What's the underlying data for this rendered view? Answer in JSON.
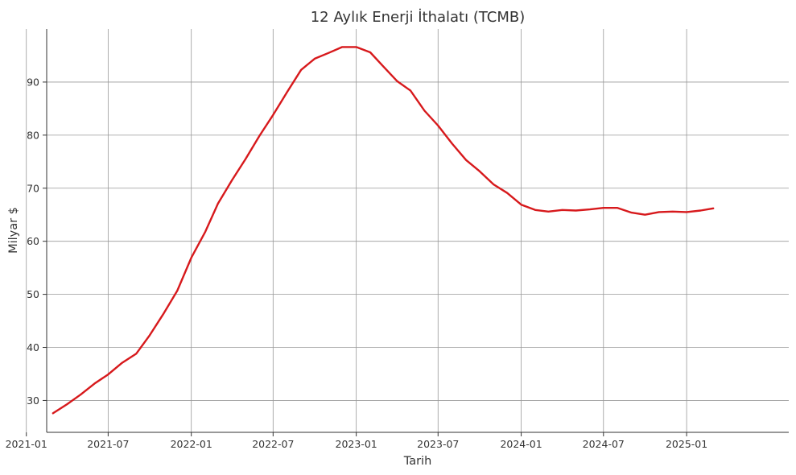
{
  "chart_data": {
    "type": "line",
    "title": "12 Aylık Enerji İthalatı (TCMB)",
    "xlabel": "Tarih",
    "ylabel": "Milyar $",
    "x_axis_type": "date",
    "xlim": [
      "2021-02-15",
      "2025-08-15"
    ],
    "ylim": [
      24,
      100
    ],
    "x_ticks": [
      "2021-01",
      "2021-07",
      "2022-01",
      "2022-07",
      "2023-01",
      "2023-07",
      "2024-01",
      "2024-07",
      "2025-01"
    ],
    "y_ticks": [
      30,
      40,
      50,
      60,
      70,
      80,
      90
    ],
    "grid": true,
    "legend": "none",
    "series": [
      {
        "color": "#d7191c",
        "x": [
          "2021-03",
          "2021-04",
          "2021-05",
          "2021-06",
          "2021-07",
          "2021-08",
          "2021-09",
          "2021-10",
          "2021-11",
          "2021-12",
          "2022-01",
          "2022-02",
          "2022-03",
          "2022-04",
          "2022-05",
          "2022-06",
          "2022-07",
          "2022-08",
          "2022-09",
          "2022-10",
          "2022-11",
          "2022-12",
          "2023-01",
          "2023-02",
          "2023-03",
          "2023-04",
          "2023-05",
          "2023-06",
          "2023-07",
          "2023-08",
          "2023-09",
          "2023-10",
          "2023-11",
          "2023-12",
          "2024-01",
          "2024-02",
          "2024-03",
          "2024-04",
          "2024-05",
          "2024-06",
          "2024-07",
          "2024-08",
          "2024-09",
          "2024-10",
          "2024-11",
          "2024-12",
          "2025-01",
          "2025-02",
          "2025-03"
        ],
        "values": [
          27.6,
          29.3,
          31.1,
          33.2,
          34.9,
          37.1,
          38.8,
          42.3,
          46.4,
          50.7,
          56.9,
          61.8,
          67.1,
          71.5,
          75.5,
          79.9,
          83.8,
          88.1,
          92.3,
          94.4,
          95.5,
          96.6,
          96.6,
          95.6,
          93.0,
          90.2,
          88.4,
          84.6,
          81.8,
          78.4,
          75.3,
          73.2,
          70.7,
          69.1,
          66.9,
          65.9,
          65.6,
          65.9,
          65.8,
          66.0,
          66.3,
          66.3,
          65.4,
          65.0,
          65.5,
          65.6,
          65.5,
          65.8,
          66.2
        ]
      }
    ]
  }
}
